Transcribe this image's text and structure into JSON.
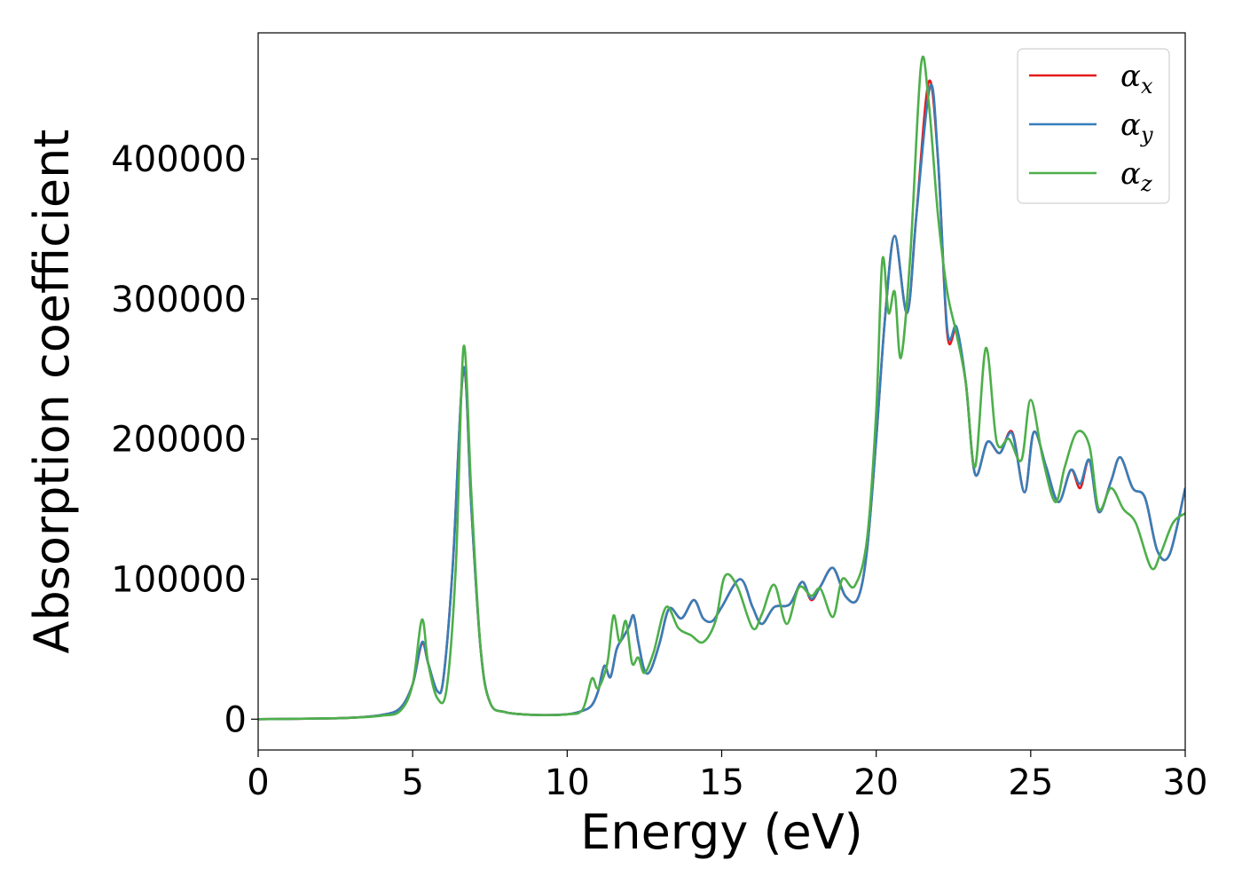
{
  "chart_data": {
    "type": "line",
    "title": "",
    "xlabel": "Energy (eV)",
    "ylabel": "Absorption coefficient",
    "xlim": [
      0,
      30
    ],
    "ylim": [
      -22000,
      490000
    ],
    "x_ticks": [
      0,
      5,
      10,
      15,
      20,
      25,
      30
    ],
    "x_tick_labels": [
      "0",
      "5",
      "10",
      "15",
      "20",
      "25",
      "30"
    ],
    "y_ticks": [
      0,
      100000,
      200000,
      300000,
      400000
    ],
    "y_tick_labels": [
      "0",
      "100000",
      "200000",
      "300000",
      "400000"
    ],
    "grid": false,
    "legend_position": "upper right",
    "series": [
      {
        "name": "αx",
        "legend": {
          "symbol": "α",
          "subscript": "x"
        },
        "color": "#e41a1c",
        "points": [
          [
            0,
            0
          ],
          [
            2,
            500
          ],
          [
            3,
            1000
          ],
          [
            4,
            3000
          ],
          [
            4.6,
            8000
          ],
          [
            5.0,
            25000
          ],
          [
            5.3,
            54000
          ],
          [
            5.5,
            40000
          ],
          [
            5.8,
            20000
          ],
          [
            6.0,
            30000
          ],
          [
            6.3,
            110000
          ],
          [
            6.65,
            250000
          ],
          [
            6.9,
            150000
          ],
          [
            7.2,
            50000
          ],
          [
            7.5,
            12000
          ],
          [
            8,
            5000
          ],
          [
            9,
            3000
          ],
          [
            10,
            3500
          ],
          [
            10.5,
            6000
          ],
          [
            10.8,
            10000
          ],
          [
            11.0,
            20000
          ],
          [
            11.2,
            38000
          ],
          [
            11.4,
            30000
          ],
          [
            11.6,
            50000
          ],
          [
            11.8,
            58000
          ],
          [
            12.0,
            66000
          ],
          [
            12.15,
            74000
          ],
          [
            12.3,
            55000
          ],
          [
            12.5,
            35000
          ],
          [
            12.7,
            35000
          ],
          [
            13.0,
            55000
          ],
          [
            13.3,
            79000
          ],
          [
            13.7,
            72000
          ],
          [
            14.1,
            85000
          ],
          [
            14.4,
            72000
          ],
          [
            14.7,
            70000
          ],
          [
            15.0,
            80000
          ],
          [
            15.6,
            100000
          ],
          [
            16.0,
            80000
          ],
          [
            16.3,
            68000
          ],
          [
            16.7,
            80000
          ],
          [
            17.2,
            82000
          ],
          [
            17.6,
            98000
          ],
          [
            17.9,
            85000
          ],
          [
            18.2,
            95000
          ],
          [
            18.6,
            108000
          ],
          [
            19.0,
            88000
          ],
          [
            19.4,
            86000
          ],
          [
            19.7,
            120000
          ],
          [
            20.0,
            200000
          ],
          [
            20.3,
            290000
          ],
          [
            20.6,
            345000
          ],
          [
            21.0,
            290000
          ],
          [
            21.3,
            360000
          ],
          [
            21.7,
            455000
          ],
          [
            22.0,
            400000
          ],
          [
            22.3,
            275000
          ],
          [
            22.6,
            278000
          ],
          [
            22.9,
            240000
          ],
          [
            23.2,
            175000
          ],
          [
            23.6,
            198000
          ],
          [
            24.0,
            190000
          ],
          [
            24.4,
            205000
          ],
          [
            24.8,
            162000
          ],
          [
            25.1,
            205000
          ],
          [
            25.5,
            180000
          ],
          [
            25.9,
            155000
          ],
          [
            26.3,
            178000
          ],
          [
            26.6,
            165000
          ],
          [
            26.9,
            185000
          ],
          [
            27.2,
            148000
          ],
          [
            27.6,
            170000
          ],
          [
            27.9,
            187000
          ],
          [
            28.3,
            165000
          ],
          [
            28.7,
            158000
          ],
          [
            29.1,
            120000
          ],
          [
            29.5,
            118000
          ],
          [
            30,
            165000
          ]
        ]
      },
      {
        "name": "αy",
        "legend": {
          "symbol": "α",
          "subscript": "y"
        },
        "color": "#377eb8",
        "points": [
          [
            0,
            0
          ],
          [
            2,
            500
          ],
          [
            3,
            1000
          ],
          [
            4,
            3000
          ],
          [
            4.6,
            8000
          ],
          [
            5.0,
            25000
          ],
          [
            5.3,
            55000
          ],
          [
            5.5,
            40000
          ],
          [
            5.8,
            20000
          ],
          [
            6.0,
            30000
          ],
          [
            6.3,
            110000
          ],
          [
            6.65,
            251000
          ],
          [
            6.9,
            150000
          ],
          [
            7.2,
            50000
          ],
          [
            7.5,
            12000
          ],
          [
            8,
            5000
          ],
          [
            9,
            3000
          ],
          [
            10,
            3500
          ],
          [
            10.5,
            6000
          ],
          [
            10.8,
            10000
          ],
          [
            11.0,
            20000
          ],
          [
            11.2,
            38000
          ],
          [
            11.4,
            30000
          ],
          [
            11.6,
            50000
          ],
          [
            11.8,
            58000
          ],
          [
            12.0,
            66000
          ],
          [
            12.15,
            74000
          ],
          [
            12.3,
            55000
          ],
          [
            12.5,
            35000
          ],
          [
            12.7,
            35000
          ],
          [
            13.0,
            55000
          ],
          [
            13.3,
            79000
          ],
          [
            13.7,
            72000
          ],
          [
            14.1,
            85000
          ],
          [
            14.4,
            72000
          ],
          [
            14.7,
            70000
          ],
          [
            15.0,
            80000
          ],
          [
            15.6,
            100000
          ],
          [
            16.0,
            80000
          ],
          [
            16.3,
            68000
          ],
          [
            16.7,
            80000
          ],
          [
            17.2,
            82000
          ],
          [
            17.6,
            98000
          ],
          [
            17.9,
            86000
          ],
          [
            18.2,
            95000
          ],
          [
            18.6,
            108000
          ],
          [
            19.0,
            88000
          ],
          [
            19.4,
            86000
          ],
          [
            19.7,
            120000
          ],
          [
            20.0,
            200000
          ],
          [
            20.3,
            290000
          ],
          [
            20.6,
            345000
          ],
          [
            21.0,
            290000
          ],
          [
            21.3,
            360000
          ],
          [
            21.75,
            452000
          ],
          [
            22.0,
            400000
          ],
          [
            22.3,
            278000
          ],
          [
            22.6,
            280000
          ],
          [
            22.9,
            240000
          ],
          [
            23.2,
            175000
          ],
          [
            23.6,
            198000
          ],
          [
            24.0,
            190000
          ],
          [
            24.4,
            204000
          ],
          [
            24.8,
            162000
          ],
          [
            25.1,
            205000
          ],
          [
            25.5,
            180000
          ],
          [
            25.9,
            155000
          ],
          [
            26.3,
            178000
          ],
          [
            26.6,
            168000
          ],
          [
            26.9,
            185000
          ],
          [
            27.2,
            148000
          ],
          [
            27.6,
            170000
          ],
          [
            27.9,
            187000
          ],
          [
            28.3,
            165000
          ],
          [
            28.7,
            158000
          ],
          [
            29.1,
            120000
          ],
          [
            29.5,
            118000
          ],
          [
            30,
            165000
          ]
        ]
      },
      {
        "name": "αz",
        "legend": {
          "symbol": "α",
          "subscript": "z"
        },
        "color": "#4daf4a",
        "points": [
          [
            0,
            0
          ],
          [
            2,
            500
          ],
          [
            3,
            1000
          ],
          [
            4,
            2500
          ],
          [
            4.6,
            6000
          ],
          [
            5.0,
            25000
          ],
          [
            5.3,
            71000
          ],
          [
            5.5,
            40000
          ],
          [
            5.8,
            15000
          ],
          [
            6.1,
            22000
          ],
          [
            6.4,
            110000
          ],
          [
            6.65,
            266000
          ],
          [
            6.9,
            160000
          ],
          [
            7.2,
            50000
          ],
          [
            7.5,
            12000
          ],
          [
            8,
            5000
          ],
          [
            9,
            3000
          ],
          [
            10,
            3500
          ],
          [
            10.5,
            7000
          ],
          [
            10.8,
            29000
          ],
          [
            11.0,
            22000
          ],
          [
            11.3,
            40000
          ],
          [
            11.5,
            74000
          ],
          [
            11.7,
            55000
          ],
          [
            11.9,
            70000
          ],
          [
            12.1,
            40000
          ],
          [
            12.3,
            44000
          ],
          [
            12.5,
            33000
          ],
          [
            12.8,
            48000
          ],
          [
            13.2,
            80000
          ],
          [
            13.6,
            65000
          ],
          [
            14.0,
            60000
          ],
          [
            14.4,
            55000
          ],
          [
            14.8,
            70000
          ],
          [
            15.1,
            102000
          ],
          [
            15.5,
            95000
          ],
          [
            16.0,
            65000
          ],
          [
            16.3,
            75000
          ],
          [
            16.7,
            96000
          ],
          [
            17.1,
            68000
          ],
          [
            17.5,
            94000
          ],
          [
            17.9,
            88000
          ],
          [
            18.2,
            93000
          ],
          [
            18.6,
            73000
          ],
          [
            18.9,
            100000
          ],
          [
            19.3,
            95000
          ],
          [
            19.7,
            128000
          ],
          [
            20.0,
            220000
          ],
          [
            20.2,
            328000
          ],
          [
            20.4,
            290000
          ],
          [
            20.6,
            305000
          ],
          [
            20.8,
            258000
          ],
          [
            21.1,
            330000
          ],
          [
            21.45,
            467000
          ],
          [
            21.7,
            440000
          ],
          [
            22.0,
            360000
          ],
          [
            22.3,
            305000
          ],
          [
            22.6,
            275000
          ],
          [
            22.9,
            240000
          ],
          [
            23.2,
            180000
          ],
          [
            23.55,
            265000
          ],
          [
            23.9,
            198000
          ],
          [
            24.3,
            200000
          ],
          [
            24.7,
            185000
          ],
          [
            25.0,
            228000
          ],
          [
            25.4,
            185000
          ],
          [
            25.8,
            155000
          ],
          [
            26.1,
            180000
          ],
          [
            26.5,
            205000
          ],
          [
            26.9,
            195000
          ],
          [
            27.2,
            150000
          ],
          [
            27.6,
            165000
          ],
          [
            28.0,
            150000
          ],
          [
            28.4,
            140000
          ],
          [
            28.9,
            108000
          ],
          [
            29.2,
            118000
          ],
          [
            29.6,
            140000
          ],
          [
            30,
            147000
          ]
        ]
      }
    ]
  }
}
